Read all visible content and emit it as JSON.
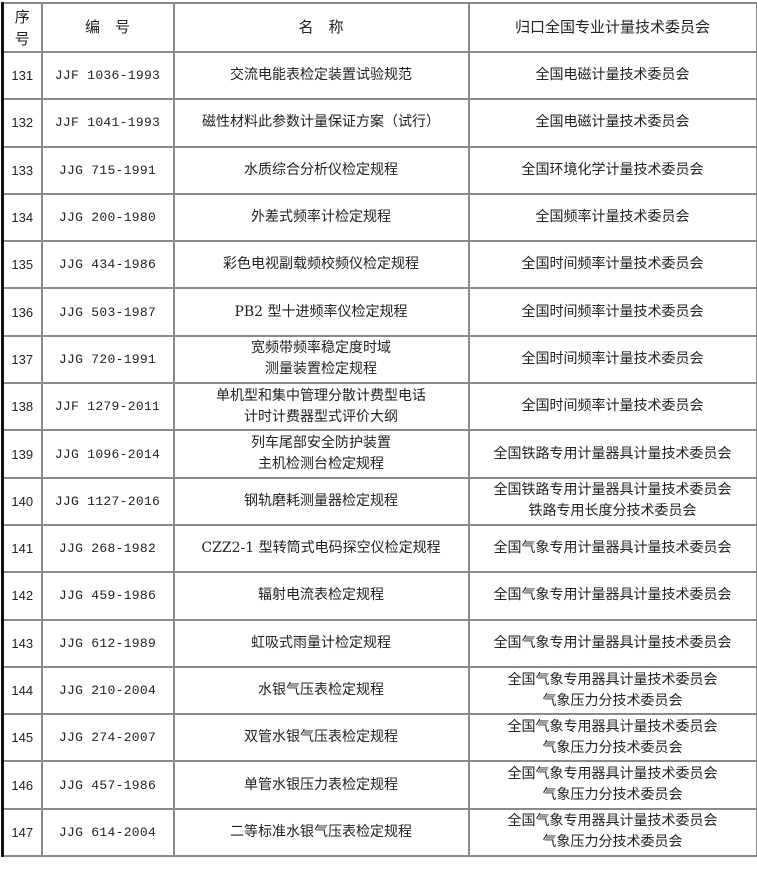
{
  "header": {
    "seq": "序号",
    "code": "编　号",
    "name": "名　称",
    "committee": "归口全国专业计量技术委员会"
  },
  "rows": [
    {
      "seq": "131",
      "code": "JJF 1036-1993",
      "name": [
        "交流电能表检定装置试验规范"
      ],
      "committee": [
        "全国电磁计量技术委员会"
      ]
    },
    {
      "seq": "132",
      "code": "JJF 1041-1993",
      "name": [
        "磁性材料此参数计量保证方案（试行）"
      ],
      "committee": [
        "全国电磁计量技术委员会"
      ]
    },
    {
      "seq": "133",
      "code": "JJG 715-1991",
      "name": [
        "水质综合分析仪检定规程"
      ],
      "committee": [
        "全国环境化学计量技术委员会"
      ]
    },
    {
      "seq": "134",
      "code": "JJG 200-1980",
      "name": [
        "外差式频率计检定规程"
      ],
      "committee": [
        "全国频率计量技术委员会"
      ]
    },
    {
      "seq": "135",
      "code": "JJG 434-1986",
      "name": [
        "彩色电视副载频校频仪检定规程"
      ],
      "committee": [
        "全国时间频率计量技术委员会"
      ]
    },
    {
      "seq": "136",
      "code": "JJG 503-1987",
      "name": [
        "PB2 型十进频率仪检定规程"
      ],
      "committee": [
        "全国时间频率计量技术委员会"
      ]
    },
    {
      "seq": "137",
      "code": "JJG 720-1991",
      "name": [
        "宽频带频率稳定度时域",
        "测量装置检定规程"
      ],
      "committee": [
        "全国时间频率计量技术委员会"
      ]
    },
    {
      "seq": "138",
      "code": "JJF 1279-2011",
      "name": [
        "单机型和集中管理分散计费型电话",
        "计时计费器型式评价大纲"
      ],
      "committee": [
        "全国时间频率计量技术委员会"
      ]
    },
    {
      "seq": "139",
      "code": "JJG 1096-2014",
      "name": [
        "列车尾部安全防护装置",
        "主机检测台检定规程"
      ],
      "committee": [
        "全国铁路专用计量器具计量技术委员会"
      ]
    },
    {
      "seq": "140",
      "code": "JJG 1127-2016",
      "name": [
        "钢轨磨耗测量器检定规程"
      ],
      "committee": [
        "全国铁路专用计量器具计量技术委员会",
        "铁路专用长度分技术委员会"
      ]
    },
    {
      "seq": "141",
      "code": "JJG 268-1982",
      "name": [
        "CZZ2-1 型转筒式电码探空仪检定规程"
      ],
      "committee": [
        "全国气象专用计量器具计量技术委员会"
      ]
    },
    {
      "seq": "142",
      "code": "JJG 459-1986",
      "name": [
        "辐射电流表检定规程"
      ],
      "committee": [
        "全国气象专用计量器具计量技术委员会"
      ]
    },
    {
      "seq": "143",
      "code": "JJG 612-1989",
      "name": [
        "虹吸式雨量计检定规程"
      ],
      "committee": [
        "全国气象专用计量器具计量技术委员会"
      ]
    },
    {
      "seq": "144",
      "code": "JJG 210-2004",
      "name": [
        "水银气压表检定规程"
      ],
      "committee": [
        "全国气象专用器具计量技术委员会",
        "气象压力分技术委员会"
      ]
    },
    {
      "seq": "145",
      "code": "JJG 274-2007",
      "name": [
        "双管水银气压表检定规程"
      ],
      "committee": [
        "全国气象专用器具计量技术委员会",
        "气象压力分技术委员会"
      ]
    },
    {
      "seq": "146",
      "code": "JJG 457-1986",
      "name": [
        "单管水银压力表检定规程"
      ],
      "committee": [
        "全国气象专用器具计量技术委员会",
        "气象压力分技术委员会"
      ]
    },
    {
      "seq": "147",
      "code": "JJG 614-2004",
      "name": [
        "二等标准水银气压表检定规程"
      ],
      "committee": [
        "全国气象专用器具计量技术委员会",
        "气象压力分技术委员会"
      ]
    }
  ]
}
